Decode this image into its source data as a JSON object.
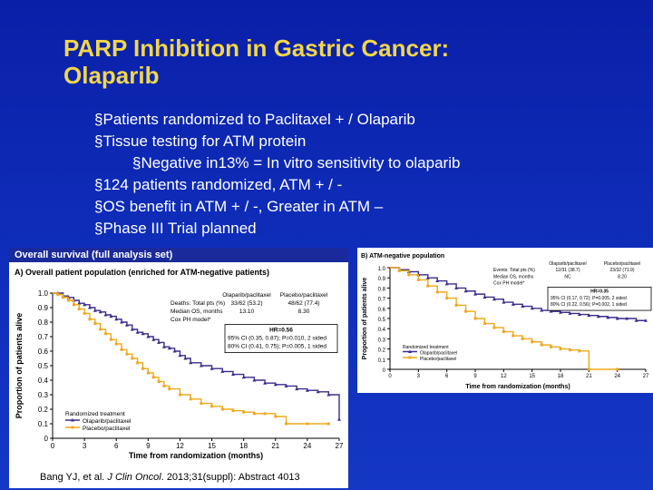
{
  "slide": {
    "title_line1": "PARP Inhibition in Gastric Cancer:",
    "title_line2": "Olaparib",
    "bullets": [
      "§Patients randomized to Paclitaxel + / Olaparib",
      "§Tissue testing for ATM protein",
      "§Negative in13% = In vitro sensitivity to olaparib",
      "§124 patients randomized, ATM + / -",
      "§OS benefit in ATM + / -, Greater in ATM –",
      "§Phase III Trial planned"
    ],
    "citation_pre": "Bang YJ, et al. ",
    "citation_journal": "J Clin Oncol",
    "citation_post": ". 2013;31(suppl): Abstract 4013"
  },
  "colors": {
    "olaparib": "#3a2c8c",
    "placebo": "#f0a81c",
    "panel_header": "#1a2a9a"
  },
  "chart_data": [
    {
      "type": "line",
      "header": "Overall survival (full analysis set)",
      "title": "A) Overall patient population (enriched for ATM-negative patients)",
      "xlabel": "Time from randomization (months)",
      "ylabel": "Proportion of patients alive",
      "xlim": [
        0,
        27
      ],
      "ylim": [
        0,
        1.0
      ],
      "xticks": [
        "0",
        "3",
        "6",
        "9",
        "12",
        "15",
        "18",
        "21",
        "24",
        "27"
      ],
      "yticks": [
        "0",
        "0.1",
        "0.2",
        "0.3",
        "0.4",
        "0.5",
        "0.6",
        "0.7",
        "0.8",
        "0.9",
        "1.0"
      ],
      "legend_title": "Randomized treatment",
      "stats": {
        "col1": "Olaparib/paclitaxel",
        "col2": "Placebo/paclitaxel",
        "rows": [
          {
            "label": "Deaths: Total pts (%)",
            "v1": "33/62 (53.2)",
            "v2": "48/62 (77.4)"
          },
          {
            "label": "Median OS, months",
            "v1": "13.10",
            "v2": "8.30"
          },
          {
            "label": "Cox PH model*",
            "v1": "",
            "v2": ""
          }
        ],
        "box": [
          "HR=0.56",
          "95% CI (0.35, 0.87); P=0.010, 2 sided",
          "80% CI (0.41, 0.75); P=0.005, 1 sided"
        ]
      },
      "series": [
        {
          "name": "Olaparib/paclitaxel",
          "color": "#3a2c8c",
          "x": [
            0,
            0.5,
            1,
            1.5,
            2,
            2.5,
            3,
            3.5,
            4,
            4.5,
            5,
            5.5,
            6,
            6.5,
            7,
            7.5,
            8,
            8.5,
            9,
            9.5,
            10,
            10.5,
            11,
            11.5,
            12,
            12.5,
            13,
            14,
            15,
            16,
            17,
            18,
            19,
            20,
            21,
            22,
            23,
            24,
            25,
            26,
            27
          ],
          "y": [
            1.0,
            1.0,
            0.98,
            0.97,
            0.95,
            0.93,
            0.92,
            0.9,
            0.88,
            0.87,
            0.85,
            0.84,
            0.82,
            0.8,
            0.78,
            0.75,
            0.73,
            0.72,
            0.7,
            0.68,
            0.66,
            0.63,
            0.62,
            0.6,
            0.57,
            0.55,
            0.52,
            0.5,
            0.48,
            0.46,
            0.44,
            0.42,
            0.4,
            0.38,
            0.37,
            0.36,
            0.34,
            0.33,
            0.32,
            0.3,
            0.13
          ]
        },
        {
          "name": "Placebo/paclitaxel",
          "color": "#f0a81c",
          "x": [
            0,
            0.5,
            1,
            1.5,
            2,
            2.5,
            3,
            3.5,
            4,
            4.5,
            5,
            5.5,
            6,
            6.5,
            7,
            7.5,
            8,
            8.5,
            9,
            9.5,
            10,
            10.5,
            11,
            12,
            13,
            14,
            15,
            16,
            17,
            18,
            19,
            20,
            21,
            22,
            24,
            26
          ],
          "y": [
            1.0,
            0.99,
            0.97,
            0.95,
            0.92,
            0.89,
            0.86,
            0.82,
            0.79,
            0.75,
            0.72,
            0.68,
            0.65,
            0.61,
            0.58,
            0.55,
            0.52,
            0.48,
            0.45,
            0.42,
            0.39,
            0.36,
            0.34,
            0.3,
            0.27,
            0.24,
            0.22,
            0.2,
            0.19,
            0.18,
            0.17,
            0.17,
            0.15,
            0.1,
            0.1,
            0.1
          ]
        }
      ]
    },
    {
      "type": "line",
      "title": "B) ATM-negative population",
      "xlabel": "Time from randomization (months)",
      "ylabel": "Proportion of patients alive",
      "xlim": [
        0,
        27
      ],
      "ylim": [
        0,
        1.0
      ],
      "xticks": [
        "0",
        "3",
        "6",
        "9",
        "12",
        "15",
        "18",
        "21",
        "24",
        "27"
      ],
      "yticks": [
        "0",
        "0.1",
        "0.2",
        "0.3",
        "0.4",
        "0.5",
        "0.6",
        "0.7",
        "0.8",
        "0.9",
        "1.0"
      ],
      "legend_title": "Randomized treatment",
      "stats": {
        "col1": "Olaparib/paclitaxel",
        "col2": "Placebo/paclitaxel",
        "rows": [
          {
            "label": "Events: Total pts (%)",
            "v1": "12/31 (38.7)",
            "v2": "23/32 (71.9)"
          },
          {
            "label": "Median OS, months",
            "v1": "NC",
            "v2": "8.20"
          },
          {
            "label": "Cox PH model*",
            "v1": "",
            "v2": ""
          }
        ],
        "box": [
          "HR=0.35",
          "95% CI (0.17, 0.72); P=0.005, 2 sided",
          "80% CI (0.22, 0.56); P=0.002, 1 sided"
        ]
      },
      "series": [
        {
          "name": "Olaparib/paclitaxel",
          "color": "#3a2c8c",
          "x": [
            0,
            1,
            2,
            3,
            4,
            5,
            6,
            7,
            8,
            9,
            10,
            11,
            12,
            13,
            14,
            15,
            16,
            17,
            18,
            19,
            20,
            21,
            22,
            23,
            24,
            25,
            26,
            27
          ],
          "y": [
            1.0,
            0.98,
            0.96,
            0.93,
            0.9,
            0.87,
            0.84,
            0.8,
            0.77,
            0.74,
            0.71,
            0.69,
            0.66,
            0.64,
            0.62,
            0.6,
            0.58,
            0.57,
            0.56,
            0.55,
            0.54,
            0.53,
            0.52,
            0.51,
            0.5,
            0.5,
            0.48,
            0.48
          ]
        },
        {
          "name": "Placebo/paclitaxel",
          "color": "#f0a81c",
          "x": [
            0,
            1,
            2,
            3,
            4,
            5,
            6,
            7,
            8,
            9,
            10,
            11,
            12,
            13,
            14,
            15,
            16,
            17,
            18,
            19,
            20,
            21,
            24
          ],
          "y": [
            1.0,
            0.97,
            0.93,
            0.88,
            0.82,
            0.76,
            0.7,
            0.63,
            0.57,
            0.5,
            0.45,
            0.41,
            0.37,
            0.33,
            0.3,
            0.27,
            0.24,
            0.22,
            0.2,
            0.19,
            0.18,
            0.0,
            0.0
          ]
        }
      ]
    }
  ]
}
